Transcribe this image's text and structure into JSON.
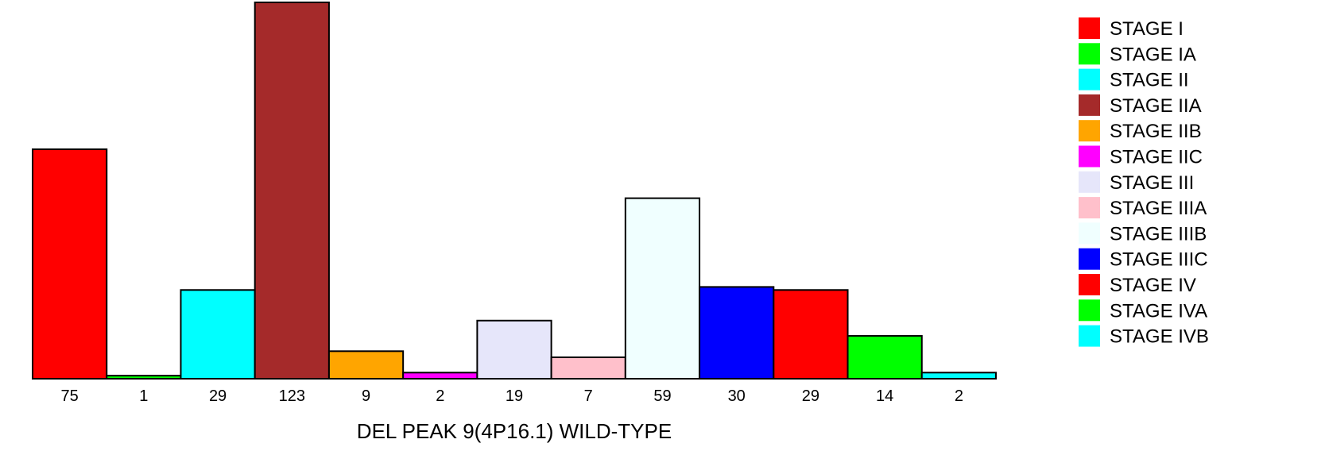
{
  "chart_data": {
    "type": "bar",
    "title": "",
    "xlabel": "DEL PEAK  9(4P16.1) WILD-TYPE",
    "ylabel": "",
    "ylim": [
      0,
      123
    ],
    "categories": [
      "STAGE I",
      "STAGE IA",
      "STAGE II",
      "STAGE IIA",
      "STAGE IIB",
      "STAGE IIC",
      "STAGE III",
      "STAGE IIIA",
      "STAGE IIIB",
      "STAGE IIIC",
      "STAGE IV",
      "STAGE IVA",
      "STAGE IVB"
    ],
    "values": [
      75,
      1,
      29,
      123,
      9,
      2,
      19,
      7,
      59,
      30,
      29,
      14,
      2
    ],
    "colors": [
      "#ff0000",
      "#00ff00",
      "#00ffff",
      "#a52a2a",
      "#ffa500",
      "#ff00ff",
      "#e6e6fa",
      "#ffc0cb",
      "#f0ffff",
      "#0000ff",
      "#ff0000",
      "#00ff00",
      "#00ffff"
    ],
    "legend": {
      "placement": "right",
      "entries": [
        "STAGE I",
        "STAGE IA",
        "STAGE II",
        "STAGE IIA",
        "STAGE IIB",
        "STAGE IIC",
        "STAGE III",
        "STAGE IIIA",
        "STAGE IIIB",
        "STAGE IIIC",
        "STAGE IV",
        "STAGE IVA",
        "STAGE IVB"
      ]
    },
    "grid": false
  }
}
